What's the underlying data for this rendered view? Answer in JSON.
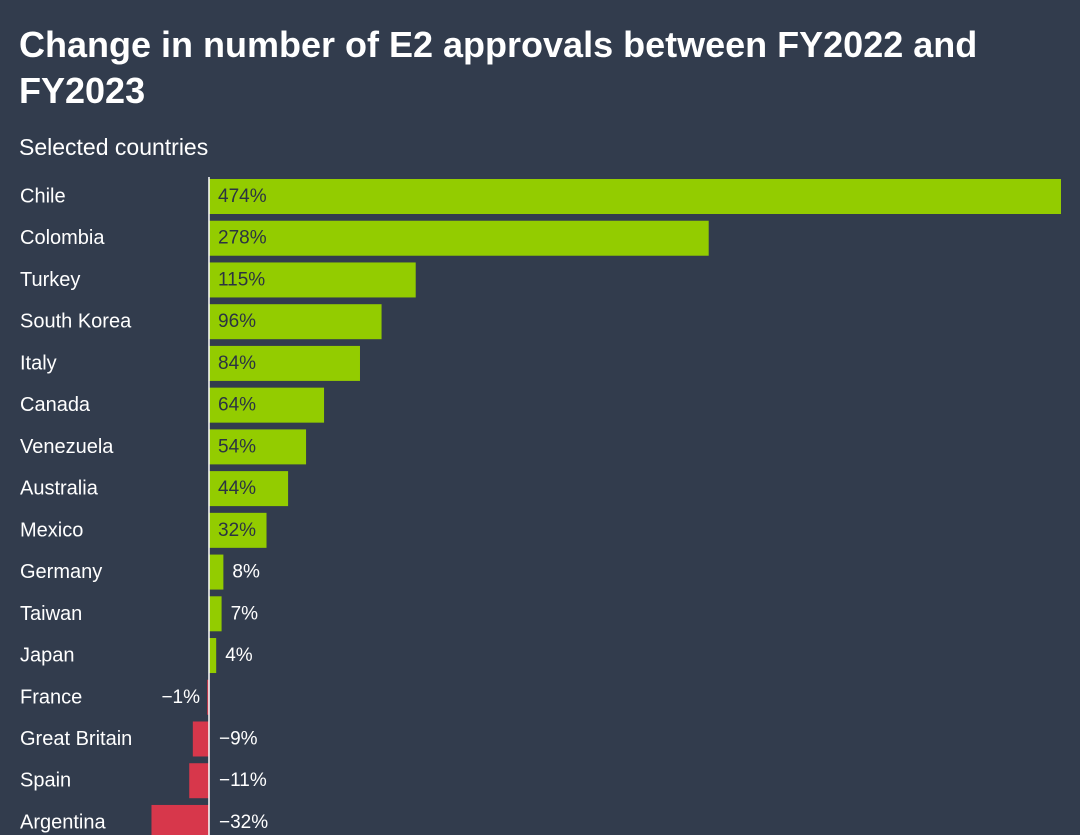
{
  "title": "Change in number of E2 approvals between FY2022 and FY2023",
  "subtitle": "Selected countries",
  "colors": {
    "background": "#323c4d",
    "positive": "#93cc00",
    "negative": "#d7374b",
    "axis": "#ffffff",
    "label_inside": "#2b3442",
    "label_outside": "#ffffff"
  },
  "chart_data": {
    "type": "bar",
    "orientation": "horizontal",
    "title": "Change in number of E2 approvals between FY2022 and FY2023",
    "subtitle": "Selected countries",
    "unit": "%",
    "xlim": [
      -32,
      474
    ],
    "categories": [
      "Chile",
      "Colombia",
      "Turkey",
      "South Korea",
      "Italy",
      "Canada",
      "Venezuela",
      "Australia",
      "Mexico",
      "Germany",
      "Taiwan",
      "Japan",
      "France",
      "Great Britain",
      "Spain",
      "Argentina"
    ],
    "values": [
      474,
      278,
      115,
      96,
      84,
      64,
      54,
      44,
      32,
      8,
      7,
      4,
      -1,
      -9,
      -11,
      -32
    ],
    "value_labels": [
      "474%",
      "278%",
      "115%",
      "96%",
      "84%",
      "64%",
      "54%",
      "44%",
      "32%",
      "8%",
      "7%",
      "4%",
      "−1%",
      "−9%",
      "−11%",
      "−32%"
    ]
  }
}
